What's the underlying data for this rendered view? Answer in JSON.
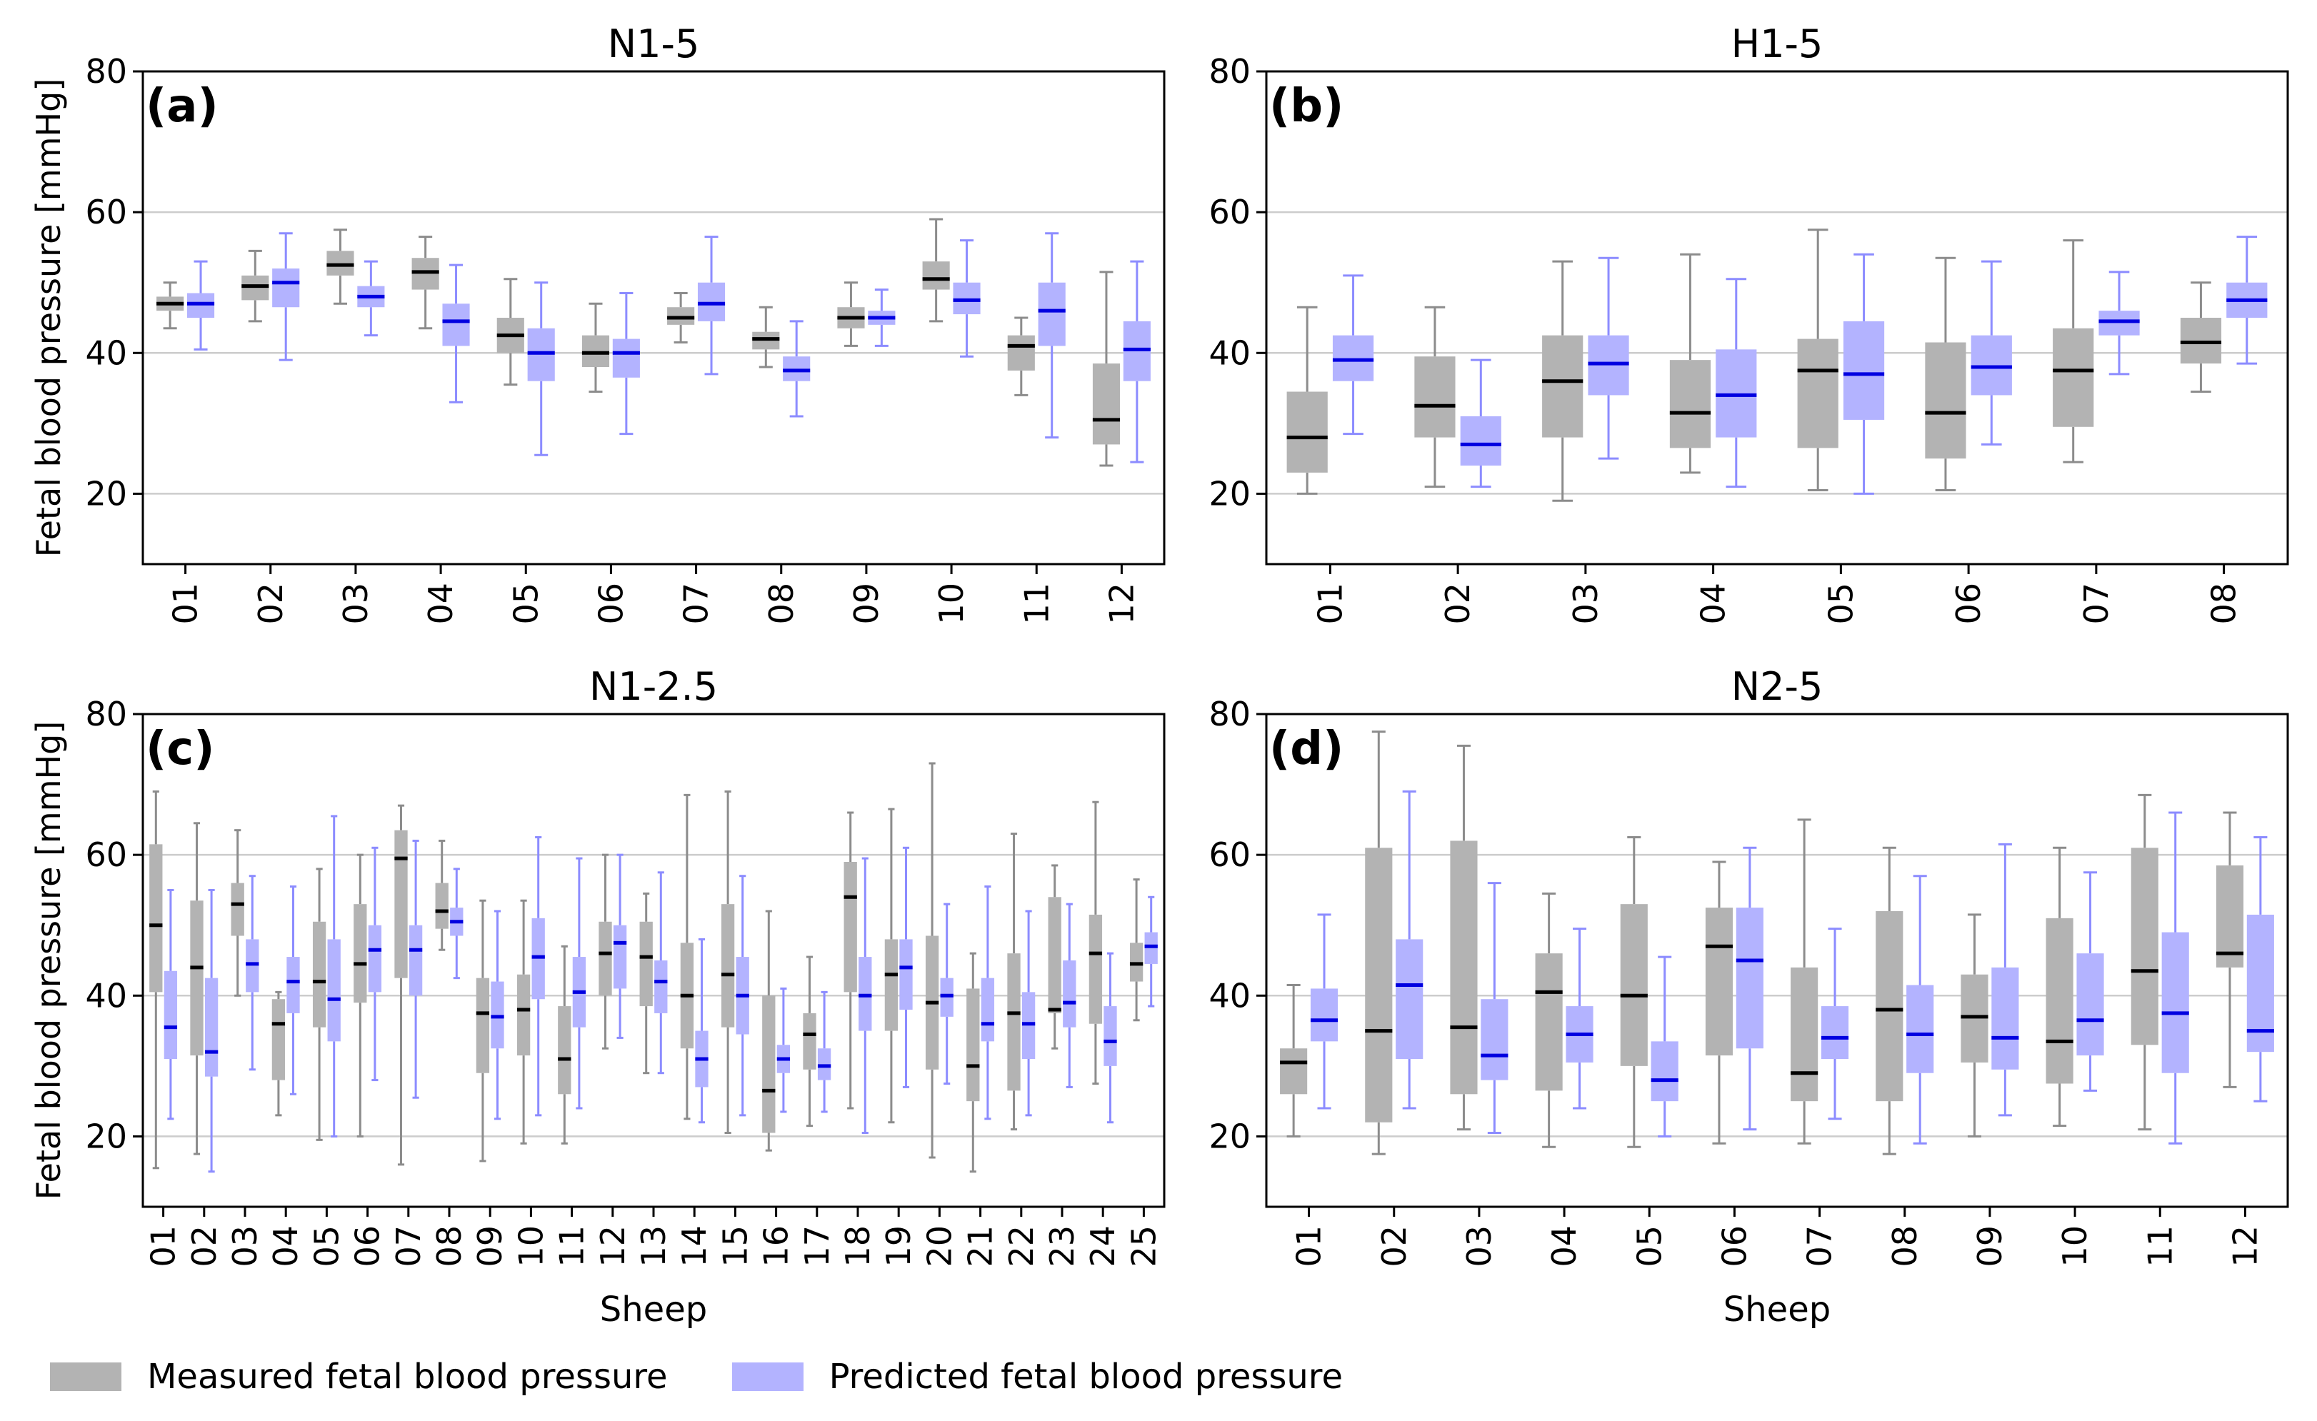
{
  "colors": {
    "measured_fill": "#b3b3b3",
    "measured_edge": "#8c8c8c",
    "measured_median": "#000000",
    "predicted_fill": "#b3b3ff",
    "predicted_edge": "#8c8cff",
    "predicted_median": "#0000e0",
    "grid": "#cccccc"
  },
  "legend": {
    "measured": "Measured fetal blood pressure",
    "predicted": "Predicted fetal blood pressure"
  },
  "chart_data": [
    {
      "type": "box",
      "panel": "(a)",
      "title": "N1-5",
      "xlabel": "",
      "ylabel": "Fetal blood pressure [mmHg]",
      "ylim": [
        10,
        80
      ],
      "yticks": [
        20,
        40,
        60,
        80
      ],
      "grid": true,
      "categories": [
        "01",
        "02",
        "03",
        "04",
        "05",
        "06",
        "07",
        "08",
        "09",
        "10",
        "11",
        "12"
      ],
      "series": [
        {
          "name": "Measured fetal blood pressure",
          "boxes": [
            [
              43.5,
              46,
              47,
              48,
              50
            ],
            [
              44.5,
              47.5,
              49.5,
              51,
              54.5
            ],
            [
              47,
              51,
              52.5,
              54.5,
              57.5
            ],
            [
              43.5,
              49,
              51.5,
              53.5,
              56.5
            ],
            [
              35.5,
              40,
              42.5,
              45,
              50.5
            ],
            [
              34.5,
              38,
              40,
              42.5,
              47
            ],
            [
              41.5,
              44,
              45,
              46.5,
              48.5
            ],
            [
              38,
              40.5,
              42,
              43,
              46.5
            ],
            [
              41,
              43.5,
              45,
              46.5,
              50
            ],
            [
              44.5,
              49,
              50.5,
              53,
              59
            ],
            [
              34,
              37.5,
              41,
              42.5,
              45
            ],
            [
              24,
              27,
              30.5,
              38.5,
              51.5
            ]
          ]
        },
        {
          "name": "Predicted fetal blood pressure",
          "boxes": [
            [
              40.5,
              45,
              47,
              48.5,
              53
            ],
            [
              39,
              46.5,
              50,
              52,
              57
            ],
            [
              42.5,
              46.5,
              48,
              49.5,
              53
            ],
            [
              33,
              41,
              44.5,
              47,
              52.5
            ],
            [
              25.5,
              36,
              40,
              43.5,
              50
            ],
            [
              28.5,
              36.5,
              40,
              42,
              48.5
            ],
            [
              37,
              44.5,
              47,
              50,
              56.5
            ],
            [
              31,
              36,
              37.5,
              39.5,
              44.5
            ],
            [
              41,
              44,
              45,
              46,
              49
            ],
            [
              39.5,
              45.5,
              47.5,
              50,
              56
            ],
            [
              28,
              41,
              46,
              50,
              57
            ],
            [
              24.5,
              36,
              40.5,
              44.5,
              53
            ]
          ]
        }
      ]
    },
    {
      "type": "box",
      "panel": "(b)",
      "title": "H1-5",
      "xlabel": "",
      "ylabel": "",
      "ylim": [
        10,
        80
      ],
      "yticks": [
        20,
        40,
        60,
        80
      ],
      "grid": true,
      "categories": [
        "01",
        "02",
        "03",
        "04",
        "05",
        "06",
        "07",
        "08"
      ],
      "series": [
        {
          "name": "Measured fetal blood pressure",
          "boxes": [
            [
              20,
              23,
              28,
              34.5,
              46.5
            ],
            [
              21,
              28,
              32.5,
              39.5,
              46.5
            ],
            [
              19,
              28,
              36,
              42.5,
              53
            ],
            [
              23,
              26.5,
              31.5,
              39,
              54
            ],
            [
              20.5,
              26.5,
              37.5,
              42,
              57.5
            ],
            [
              20.5,
              25,
              31.5,
              41.5,
              53.5
            ],
            [
              24.5,
              29.5,
              37.5,
              43.5,
              56
            ],
            [
              34.5,
              38.5,
              41.5,
              45,
              50
            ]
          ]
        },
        {
          "name": "Predicted fetal blood pressure",
          "boxes": [
            [
              28.5,
              36,
              39,
              42.5,
              51
            ],
            [
              21,
              24,
              27,
              31,
              39
            ],
            [
              25,
              34,
              38.5,
              42.5,
              53.5
            ],
            [
              21,
              28,
              34,
              40.5,
              50.5
            ],
            [
              20,
              30.5,
              37,
              44.5,
              54
            ],
            [
              27,
              34,
              38,
              42.5,
              53
            ],
            [
              37,
              42.5,
              44.5,
              46,
              51.5
            ],
            [
              38.5,
              45,
              47.5,
              50,
              56.5
            ]
          ]
        }
      ]
    },
    {
      "type": "box",
      "panel": "(c)",
      "title": "N1-2.5",
      "xlabel": "Sheep",
      "ylabel": "Fetal blood pressure [mmHg]",
      "ylim": [
        10,
        80
      ],
      "yticks": [
        20,
        40,
        60,
        80
      ],
      "grid": true,
      "categories": [
        "01",
        "02",
        "03",
        "04",
        "05",
        "06",
        "07",
        "08",
        "09",
        "10",
        "11",
        "12",
        "13",
        "14",
        "15",
        "16",
        "17",
        "18",
        "19",
        "20",
        "21",
        "22",
        "23",
        "24",
        "25"
      ],
      "series": [
        {
          "name": "Measured fetal blood pressure",
          "boxes": [
            [
              15.5,
              40.5,
              50,
              61.5,
              69
            ],
            [
              17.5,
              31.5,
              44,
              53.5,
              64.5
            ],
            [
              40,
              48.5,
              53,
              56,
              63.5
            ],
            [
              23,
              28,
              36,
              39.5,
              40.5
            ],
            [
              19.5,
              35.5,
              42,
              50.5,
              58
            ],
            [
              20,
              39,
              44.5,
              53,
              60
            ],
            [
              16,
              42.5,
              59.5,
              63.5,
              67
            ],
            [
              46.5,
              49.5,
              52,
              56,
              62
            ],
            [
              16.5,
              29,
              37.5,
              42.5,
              53.5
            ],
            [
              19,
              31.5,
              38,
              43,
              53.5
            ],
            [
              19,
              26,
              31,
              38.5,
              47
            ],
            [
              32.5,
              40,
              46,
              50.5,
              60
            ],
            [
              29,
              38.5,
              45.5,
              50.5,
              54.5
            ],
            [
              22.5,
              32.5,
              40,
              47.5,
              68.5
            ],
            [
              20.5,
              35.5,
              43,
              53,
              69
            ],
            [
              18,
              20.5,
              26.5,
              40,
              52
            ],
            [
              21.5,
              29.5,
              34.5,
              37.5,
              45.5
            ],
            [
              24,
              40.5,
              54,
              59,
              66
            ],
            [
              22,
              35,
              43,
              48,
              66.5
            ],
            [
              17,
              29.5,
              39,
              48.5,
              73
            ],
            [
              15,
              25,
              30,
              41,
              46
            ],
            [
              21,
              26.5,
              37.5,
              46,
              63
            ],
            [
              32.5,
              37.5,
              38,
              54,
              58.5
            ],
            [
              27.5,
              36,
              46,
              51.5,
              67.5
            ],
            [
              36.5,
              42,
              44.5,
              47.5,
              56.5
            ]
          ]
        },
        {
          "name": "Predicted fetal blood pressure",
          "boxes": [
            [
              22.5,
              31,
              35.5,
              43.5,
              55
            ],
            [
              15,
              28.5,
              32,
              42.5,
              55
            ],
            [
              29.5,
              40.5,
              44.5,
              48,
              57
            ],
            [
              26,
              37.5,
              42,
              45.5,
              55.5
            ],
            [
              20,
              33.5,
              39.5,
              48,
              65.5
            ],
            [
              28,
              40.5,
              46.5,
              50,
              61
            ],
            [
              25.5,
              40,
              46.5,
              50,
              62
            ],
            [
              42.5,
              48.5,
              50.5,
              52.5,
              58
            ],
            [
              22.5,
              32.5,
              37,
              42,
              52
            ],
            [
              23,
              39.5,
              45.5,
              51,
              62.5
            ],
            [
              24,
              35.5,
              40.5,
              45.5,
              59.5
            ],
            [
              34,
              41,
              47.5,
              50,
              60
            ],
            [
              29,
              37.5,
              42,
              45,
              57.5
            ],
            [
              22,
              27,
              31,
              35,
              48
            ],
            [
              23,
              34.5,
              40,
              45.5,
              57
            ],
            [
              23.5,
              29,
              31,
              33,
              41
            ],
            [
              23.5,
              28,
              30,
              32.5,
              40.5
            ],
            [
              20.5,
              35,
              40,
              45.5,
              59.5
            ],
            [
              27,
              38,
              44,
              48,
              61
            ],
            [
              27.5,
              37,
              40,
              42.5,
              53
            ],
            [
              22.5,
              33.5,
              36,
              42.5,
              55.5
            ],
            [
              23,
              31,
              36,
              40.5,
              52
            ],
            [
              27,
              35.5,
              39,
              45,
              53
            ],
            [
              22,
              30,
              33.5,
              38.5,
              46
            ],
            [
              38.5,
              44.5,
              47,
              49,
              54
            ]
          ]
        }
      ]
    },
    {
      "type": "box",
      "panel": "(d)",
      "title": "N2-5",
      "xlabel": "Sheep",
      "ylabel": "",
      "ylim": [
        10,
        80
      ],
      "yticks": [
        20,
        40,
        60,
        80
      ],
      "grid": true,
      "categories": [
        "01",
        "02",
        "03",
        "04",
        "05",
        "06",
        "07",
        "08",
        "09",
        "10",
        "11",
        "12"
      ],
      "series": [
        {
          "name": "Measured fetal blood pressure",
          "boxes": [
            [
              20,
              26,
              30.5,
              32.5,
              41.5
            ],
            [
              17.5,
              22,
              35,
              61,
              77.5
            ],
            [
              21,
              26,
              35.5,
              62,
              75.5
            ],
            [
              18.5,
              26.5,
              40.5,
              46,
              54.5
            ],
            [
              18.5,
              30,
              40,
              53,
              62.5
            ],
            [
              19,
              31.5,
              47,
              52.5,
              59
            ],
            [
              19,
              25,
              29,
              44,
              65
            ],
            [
              17.5,
              25,
              38,
              52,
              61
            ],
            [
              20,
              30.5,
              37,
              43,
              51.5
            ],
            [
              21.5,
              27.5,
              33.5,
              51,
              61
            ],
            [
              21,
              33,
              43.5,
              61,
              68.5
            ],
            [
              27,
              44,
              46,
              58.5,
              66
            ]
          ]
        },
        {
          "name": "Predicted fetal blood pressure",
          "boxes": [
            [
              24,
              33.5,
              36.5,
              41,
              51.5
            ],
            [
              24,
              31,
              41.5,
              48,
              69
            ],
            [
              20.5,
              28,
              31.5,
              39.5,
              56
            ],
            [
              24,
              30.5,
              34.5,
              38.5,
              49.5
            ],
            [
              20,
              25,
              28,
              33.5,
              45.5
            ],
            [
              21,
              32.5,
              45,
              52.5,
              61
            ],
            [
              22.5,
              31,
              34,
              38.5,
              49.5
            ],
            [
              19,
              29,
              34.5,
              41.5,
              57
            ],
            [
              23,
              29.5,
              34,
              44,
              61.5
            ],
            [
              26.5,
              31.5,
              36.5,
              46,
              57.5
            ],
            [
              19,
              29,
              37.5,
              49,
              66
            ],
            [
              25,
              32,
              35,
              51.5,
              62.5
            ]
          ]
        }
      ]
    }
  ]
}
